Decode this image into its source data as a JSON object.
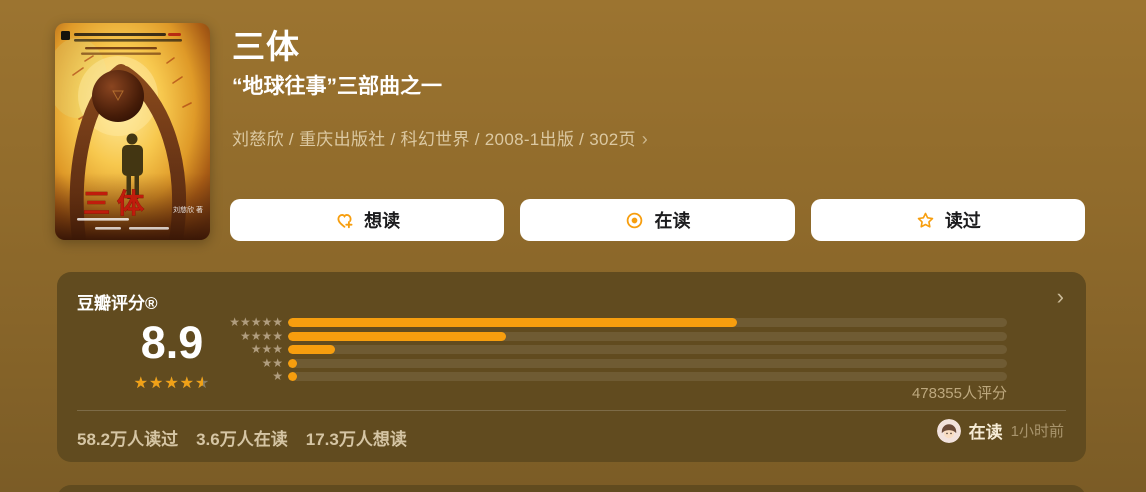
{
  "colors": {
    "accent_orange": "#f79e0e",
    "page_bg_top": "#9c7430",
    "page_bg_bottom": "#7b5c26",
    "card_bg": "#614b1f",
    "cover_title_red": "#c01c0c"
  },
  "header": {
    "title": "三体",
    "subtitle": "“地球往事”三部曲之一",
    "meta": "刘慈欣 / 重庆出版社 / 科幻世界 / 2008-1出版 / 302页",
    "meta_chevron": "›"
  },
  "cover": {
    "title": "三体",
    "author_credit": "刘慈欣 著"
  },
  "actions": [
    {
      "id": "want-to-read",
      "label": "想读",
      "icon": "heart-plus-icon"
    },
    {
      "id": "reading",
      "label": "在读",
      "icon": "record-icon"
    },
    {
      "id": "have-read",
      "label": "读过",
      "icon": "star-outline-icon"
    }
  ],
  "rating_card": {
    "title": "豆瓣评分®",
    "chevron": "›",
    "score": "8.9",
    "score_stars_of_5": 4.5,
    "votes": "478355人评分",
    "histogram": [
      {
        "stars": 5,
        "percent": 62.4
      },
      {
        "stars": 4,
        "percent": 30.3
      },
      {
        "stars": 3,
        "percent": 6.6
      },
      {
        "stars": 2,
        "percent": 1.2
      },
      {
        "stars": 1,
        "percent": 1.2
      }
    ],
    "stats": [
      "58.2万人读过",
      "3.6万人在读",
      "17.3万人想读"
    ],
    "activity": {
      "status": "在读",
      "time": "1小时前"
    }
  }
}
